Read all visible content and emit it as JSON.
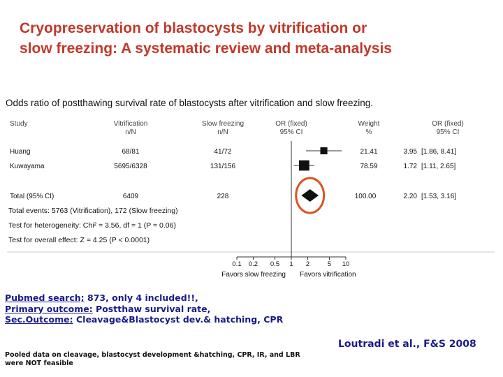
{
  "slide": {
    "title_line1": "Cryopreservation of blastocysts by vitrification or",
    "title_line2": "slow freezing: A systematic review and meta-analysis"
  },
  "chart_data": {
    "type": "forest",
    "title": "Odds ratio of postthawing survival rate of blastocysts after vitrification and slow freezing.",
    "columns": {
      "study": "Study",
      "vitrification": [
        "Vitrification",
        "n/N"
      ],
      "slow_freezing": [
        "Slow freezing",
        "n/N"
      ],
      "or_fixed_plot": [
        "OR (fixed)",
        "95% CI"
      ],
      "weight": [
        "Weight",
        "%"
      ],
      "or_fixed": [
        "OR (fixed)",
        "95% CI"
      ]
    },
    "studies": [
      {
        "name": "Huang",
        "vitrification": "68/81",
        "slow_freezing": "41/72",
        "weight": "21.41",
        "or_text": "3.95",
        "ci_text": "[1.86, 8.41]",
        "or": 3.95,
        "lo": 1.86,
        "hi": 8.41
      },
      {
        "name": "Kuwayama",
        "vitrification": "5695/6328",
        "slow_freezing": "131/156",
        "weight": "78.59",
        "or_text": "1.72",
        "ci_text": "[1.11, 2.65]",
        "or": 1.72,
        "lo": 1.11,
        "hi": 2.65
      }
    ],
    "total": {
      "name": "Total (95% CI)",
      "vitrification": "6409",
      "slow_freezing": "228",
      "weight": "100.00",
      "or_text": "2.20",
      "ci_text": "[1.53, 3.16]",
      "or": 2.2,
      "lo": 1.53,
      "hi": 3.16
    },
    "stats": [
      "Total events: 5763 (Vitrification), 172 (Slow freezing)",
      "Test for heterogeneity: Chi² = 3.56, df = 1 (P = 0.06)",
      "Test for overall effect: Z = 4.25 (P < 0.0001)"
    ],
    "x_scale": "log",
    "x_ticks": [
      0.1,
      0.2,
      0.5,
      1,
      2,
      5,
      10
    ],
    "x_tick_labels": [
      "0.1",
      "0.2",
      "0.5",
      "1",
      "2",
      "5",
      "10"
    ],
    "x_label_left": "Favors slow freezing",
    "x_label_right": "Favors vitrification",
    "highlight": "total-diamond",
    "colors": {
      "text": "#111111",
      "line": "#333333",
      "marker": "#111111",
      "highlight_circle": "#d9541e"
    }
  },
  "notes": {
    "line1_label": "Pubmed search;",
    "line1_text": " 873,  only 4 included!!,",
    "line2_label": "Primary outcome:",
    "line2_text": " Postthaw survival rate,",
    "line3_label": "Sec.Outcome:",
    "line3_text": " Cleavage&Blastocyst dev.& hatching, CPR"
  },
  "footnote": "Pooled data on cleavage, blastocyst  development &hatching, CPR, IR, and LBR were NOT feasible",
  "citation": "Loutradi et al., F&S 2008"
}
